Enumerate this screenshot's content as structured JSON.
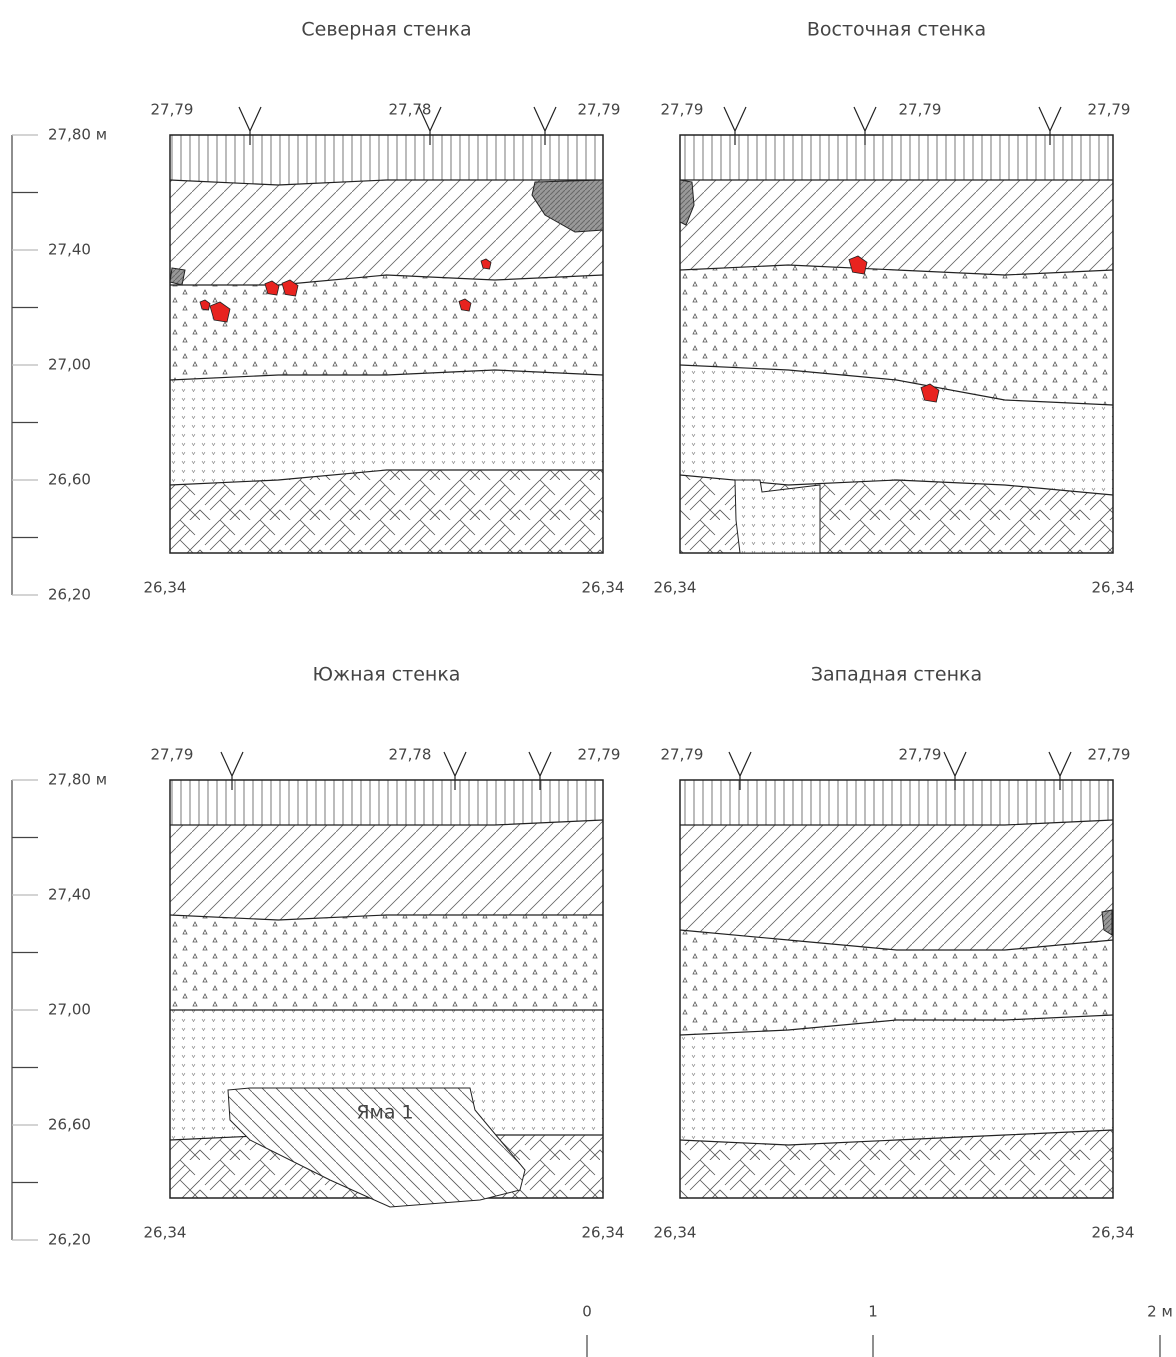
{
  "panels": [
    {
      "title": "Северная стенка",
      "top_labels": [
        "27,79",
        "27,78",
        "27,79"
      ],
      "bottom_labels": [
        "26,34",
        "26,34"
      ]
    },
    {
      "title": "Восточная стенка",
      "top_labels": [
        "27,79",
        "27,79",
        "27,79"
      ],
      "bottom_labels": [
        "26,34",
        "26,34"
      ]
    },
    {
      "title": "Южная стенка",
      "top_labels": [
        "27,79",
        "27,78",
        "27,79"
      ],
      "bottom_labels": [
        "26,34",
        "26,34"
      ],
      "annotation": "Яма 1"
    },
    {
      "title": "Западная стенка",
      "top_labels": [
        "27,79",
        "27,79",
        "27,79"
      ],
      "bottom_labels": [
        "26,34",
        "26,34"
      ]
    }
  ],
  "rulers": [
    {
      "labels": [
        "27,80 м",
        "27,40",
        "27,00",
        "26,60",
        "26,20"
      ]
    },
    {
      "labels": [
        "27,80 м",
        "27,40",
        "27,00",
        "26,60",
        "26,20"
      ]
    }
  ],
  "scale_bar": {
    "labels": [
      "0",
      "1",
      "2 м"
    ]
  }
}
